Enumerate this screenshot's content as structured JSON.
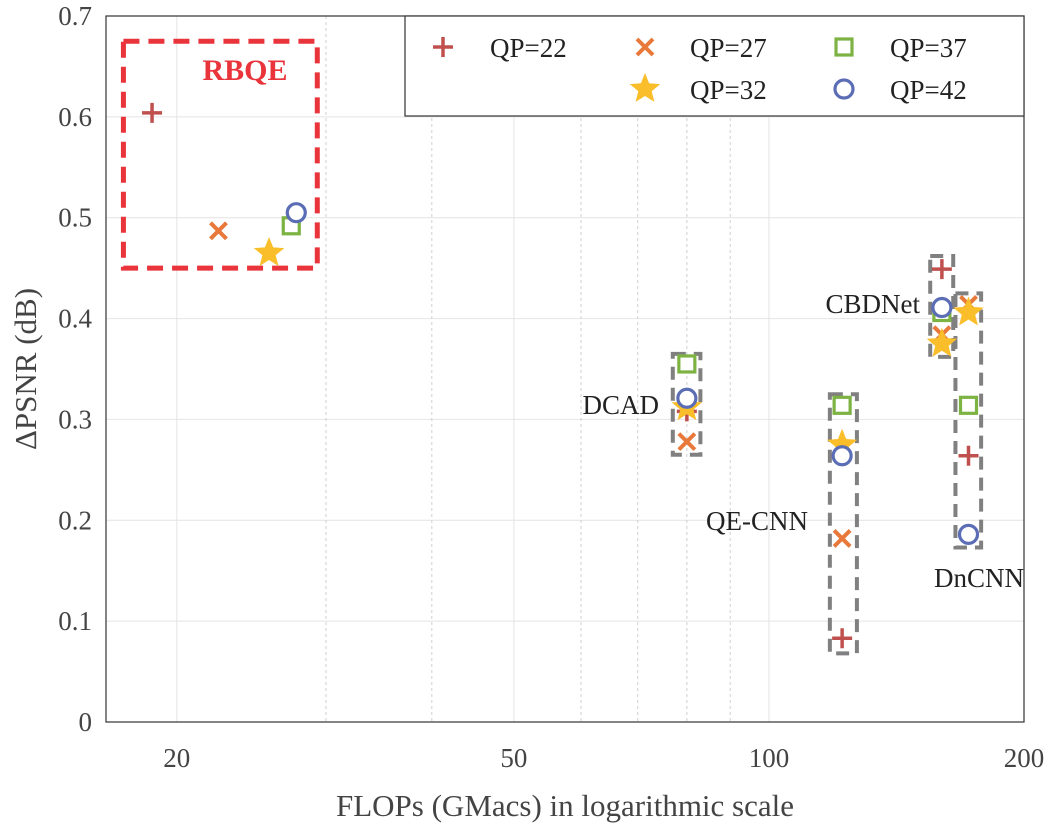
{
  "chart_data": {
    "type": "scatter",
    "xlabel": "FLOPs (GMacs) in logarithmic scale",
    "ylabel": "ΔPSNR (dB)",
    "xscale": "log",
    "xlim": [
      16.5,
      200
    ],
    "ylim": [
      0,
      0.7
    ],
    "xticks": [
      20,
      50,
      100,
      200
    ],
    "xtick_labels": [
      "20",
      "50",
      "100",
      "200"
    ],
    "yticks": [
      0,
      0.1,
      0.2,
      0.3,
      0.4,
      0.5,
      0.6,
      0.7
    ],
    "ytick_labels": [
      "0",
      "0.1",
      "0.2",
      "0.3",
      "0.4",
      "0.5",
      "0.6",
      "0.7"
    ],
    "minor_x_gridlines": [
      30,
      40,
      60,
      70,
      80,
      90
    ],
    "grid": true,
    "legend_position": "top-right",
    "series": [
      {
        "name": "QP=22",
        "marker": "plus",
        "color": "#C0504D",
        "points": [
          [
            18.7,
            0.604
          ],
          [
            80,
            0.308
          ],
          [
            122,
            0.083
          ],
          [
            160,
            0.449
          ],
          [
            172,
            0.264
          ]
        ]
      },
      {
        "name": "QP=27",
        "marker": "x",
        "color": "#E8793A",
        "points": [
          [
            22.4,
            0.487
          ],
          [
            80,
            0.278
          ],
          [
            122,
            0.182
          ],
          [
            160,
            0.384
          ],
          [
            172,
            0.414
          ]
        ]
      },
      {
        "name": "QP=32",
        "marker": "star",
        "color": "#F9BE2A",
        "points": [
          [
            25.7,
            0.465
          ],
          [
            80,
            0.312
          ],
          [
            122,
            0.275
          ],
          [
            160,
            0.375
          ],
          [
            172,
            0.406
          ]
        ]
      },
      {
        "name": "QP=37",
        "marker": "square",
        "color": "#7DB343",
        "points": [
          [
            27.3,
            0.492
          ],
          [
            80,
            0.355
          ],
          [
            122,
            0.314
          ],
          [
            160,
            0.406
          ],
          [
            172,
            0.314
          ]
        ]
      },
      {
        "name": "QP=42",
        "marker": "circle",
        "color": "#5B6DB5",
        "points": [
          [
            27.6,
            0.505
          ],
          [
            80,
            0.321
          ],
          [
            122,
            0.264
          ],
          [
            160,
            0.411
          ],
          [
            172,
            0.186
          ]
        ]
      }
    ],
    "annotations": [
      {
        "text": "RBQE",
        "color": "#E8343A"
      },
      {
        "text": "DCAD",
        "color": "#222222"
      },
      {
        "text": "QE-CNN",
        "color": "#222222"
      },
      {
        "text": "CBDNet",
        "color": "#222222"
      },
      {
        "text": "DnCNN",
        "color": "#222222"
      }
    ],
    "group_boxes": [
      {
        "label": "RBQE",
        "x_range": [
          17.3,
          29.3
        ],
        "y_range": [
          0.45,
          0.675
        ],
        "color": "#E8343A"
      },
      {
        "label": "DCAD",
        "x_range": [
          77,
          83
        ],
        "y_range": [
          0.265,
          0.365
        ],
        "color": "#808080"
      },
      {
        "label": "QE-CNN",
        "x_range": [
          118,
          127
        ],
        "y_range": [
          0.068,
          0.325
        ],
        "color": "#808080"
      },
      {
        "label": "CBDNet",
        "x_range": [
          155,
          165
        ],
        "y_range": [
          0.362,
          0.462
        ],
        "color": "#808080"
      },
      {
        "label": "DnCNN",
        "x_range": [
          166,
          178
        ],
        "y_range": [
          0.173,
          0.425
        ],
        "color": "#808080"
      }
    ]
  }
}
